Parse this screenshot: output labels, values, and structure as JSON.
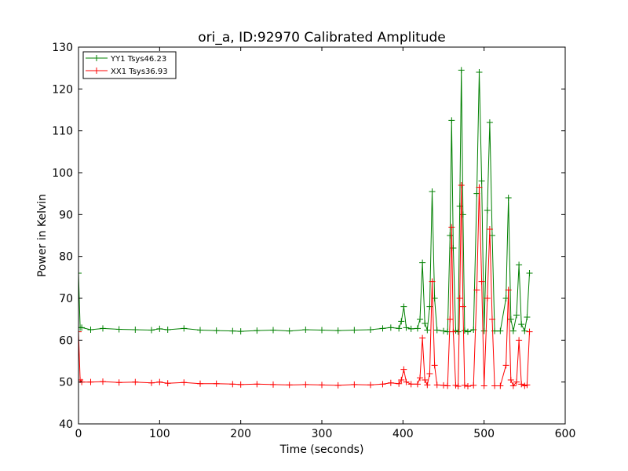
{
  "chart_data": {
    "type": "line",
    "title": "ori_a, ID:92970 Calibrated Amplitude",
    "xlabel": "Time (seconds)",
    "ylabel": "Power in Kelvin",
    "xlim": [
      0,
      600
    ],
    "ylim": [
      40,
      130
    ],
    "xticks": [
      0,
      100,
      200,
      300,
      400,
      500,
      600
    ],
    "yticks": [
      40,
      50,
      60,
      70,
      80,
      90,
      100,
      110,
      120,
      130
    ],
    "grid": false,
    "legend_position": "top-left",
    "marker": "plus",
    "series": [
      {
        "name": "YY1 Tsys46.23",
        "color": "#008000",
        "x": [
          0,
          2,
          4,
          15,
          30,
          50,
          70,
          90,
          100,
          110,
          130,
          150,
          170,
          190,
          200,
          220,
          240,
          260,
          280,
          300,
          320,
          340,
          360,
          375,
          385,
          395,
          398,
          401,
          404,
          410,
          418,
          421,
          424,
          427,
          430,
          433,
          436,
          439,
          442,
          450,
          455,
          458,
          460,
          462,
          465,
          468,
          470,
          472,
          474,
          476,
          480,
          487,
          491,
          494,
          497,
          500,
          504,
          507,
          510,
          513,
          520,
          527,
          530,
          533,
          536,
          540,
          543,
          546,
          550,
          553,
          556
        ],
        "y": [
          76,
          63,
          63,
          62.5,
          62.8,
          62.6,
          62.5,
          62.4,
          62.7,
          62.5,
          62.8,
          62.4,
          62.3,
          62.2,
          62.1,
          62.3,
          62.4,
          62.2,
          62.5,
          62.4,
          62.3,
          62.4,
          62.5,
          62.8,
          63,
          62.8,
          64.5,
          68,
          63,
          62.7,
          62.8,
          65,
          78.5,
          64,
          62.4,
          68,
          95.5,
          70,
          62.4,
          62.2,
          62,
          85,
          112.5,
          82,
          62.3,
          62,
          92,
          124.5,
          90,
          62.3,
          62,
          62.5,
          95,
          124,
          98,
          62.2,
          91,
          112,
          85,
          62.2,
          62.2,
          70,
          94,
          65,
          62.2,
          66,
          78,
          63.8,
          62.2,
          65.5,
          76
        ]
      },
      {
        "name": "XX1 Tsys36.93",
        "color": "#ff0000",
        "x": [
          0,
          2,
          4,
          15,
          30,
          50,
          70,
          90,
          100,
          110,
          130,
          150,
          170,
          190,
          200,
          220,
          240,
          260,
          280,
          300,
          320,
          340,
          360,
          375,
          385,
          395,
          398,
          401,
          404,
          410,
          418,
          421,
          424,
          427,
          430,
          433,
          436,
          439,
          442,
          450,
          455,
          458,
          460,
          462,
          465,
          468,
          470,
          472,
          474,
          476,
          480,
          487,
          491,
          494,
          497,
          500,
          504,
          507,
          510,
          513,
          520,
          527,
          530,
          533,
          536,
          540,
          543,
          546,
          550,
          553,
          556
        ],
        "y": [
          62,
          50.5,
          50,
          50,
          50.1,
          49.9,
          50,
          49.8,
          50,
          49.7,
          49.9,
          49.6,
          49.6,
          49.5,
          49.4,
          49.5,
          49.4,
          49.3,
          49.4,
          49.3,
          49.2,
          49.4,
          49.3,
          49.5,
          49.8,
          49.6,
          50.5,
          53,
          50,
          49.5,
          49.5,
          51,
          60.5,
          50.5,
          49.3,
          52,
          74,
          54,
          49.3,
          49.2,
          49.1,
          65,
          87,
          62,
          49.2,
          49,
          70,
          97,
          68,
          49.2,
          49,
          49.2,
          72,
          96.5,
          74,
          49.1,
          70,
          86.5,
          65,
          49.1,
          49.1,
          54,
          72,
          50.5,
          49.1,
          50,
          60,
          49.5,
          49.1,
          49.3,
          62
        ]
      }
    ]
  }
}
